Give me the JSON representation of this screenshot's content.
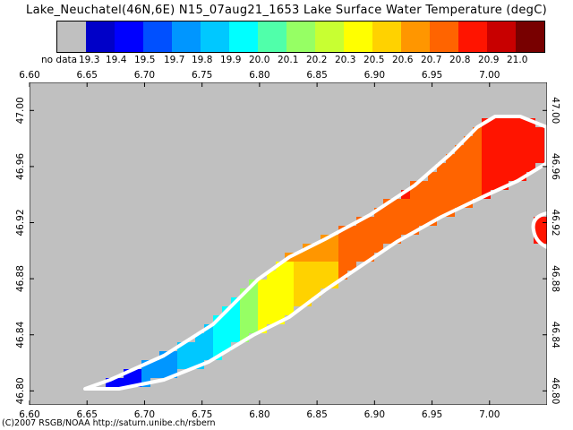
{
  "title": "Lake_Neuchatel(46N,6E) N15_07aug21_1653 Lake Surface Water Temperature (degC)",
  "colorbar": {
    "labels": [
      "no data",
      "19.3",
      "19.4",
      "19.5",
      "19.7",
      "19.8",
      "19.9",
      "20.0",
      "20.1",
      "20.2",
      "20.3",
      "20.5",
      "20.6",
      "20.7",
      "20.8",
      "20.9",
      "21.0"
    ],
    "colors": [
      "#c0c0c0",
      "#0000c8",
      "#0000ff",
      "#0050ff",
      "#0096ff",
      "#00c8ff",
      "#00ffff",
      "#50ffaa",
      "#96ff64",
      "#c8ff32",
      "#ffff00",
      "#ffd200",
      "#ff9600",
      "#ff6400",
      "#ff1400",
      "#c80000",
      "#780000"
    ]
  },
  "axes": {
    "lon_ticks": [
      "6.60",
      "6.65",
      "6.70",
      "6.75",
      "6.80",
      "6.85",
      "6.90",
      "6.95",
      "7.00"
    ],
    "lat_ticks": [
      "47.00",
      "46.96",
      "46.92",
      "46.88",
      "46.84",
      "46.80"
    ],
    "lon_range": [
      6.6,
      7.05
    ],
    "lat_range": [
      46.79,
      47.02
    ]
  },
  "map_colors": {
    "land": "#c0c0c0",
    "shoreline": "#ffffff"
  },
  "footer": "(C)2007 RSGB/NOAA http://saturn.unibe.ch/rsbern"
}
